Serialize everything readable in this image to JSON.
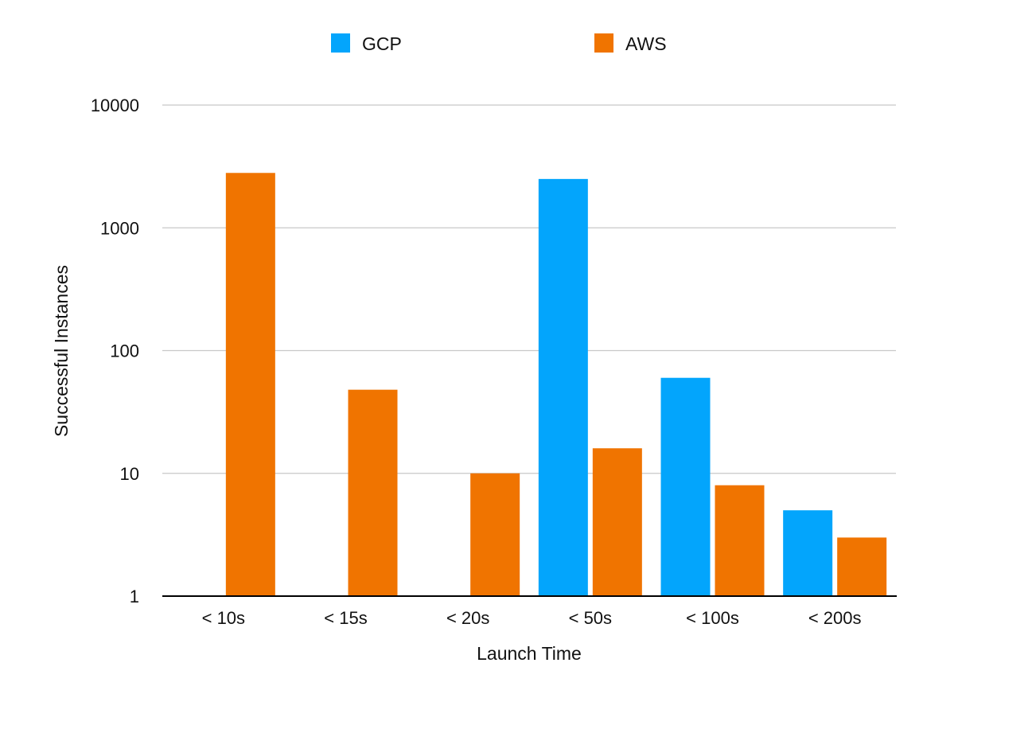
{
  "chart_data": {
    "type": "bar",
    "title": "",
    "xlabel": "Launch Time",
    "ylabel": "Successful Instances",
    "y_scale": "log",
    "ylim": [
      1,
      10000
    ],
    "y_ticks": [
      1,
      10,
      100,
      1000,
      10000
    ],
    "y_tick_labels": [
      "1",
      "10",
      "100",
      "1000",
      "10000"
    ],
    "grid": true,
    "legend_position": "top-center",
    "categories": [
      "< 10s",
      "< 15s",
      "< 20s",
      "< 50s",
      "< 100s",
      "< 200s"
    ],
    "series": [
      {
        "name": "GCP",
        "color": "#03a5fc",
        "values": [
          null,
          null,
          null,
          2500,
          60,
          5
        ]
      },
      {
        "name": "AWS",
        "color": "#f07400",
        "values": [
          2800,
          48,
          10,
          16,
          8,
          3
        ]
      }
    ]
  }
}
